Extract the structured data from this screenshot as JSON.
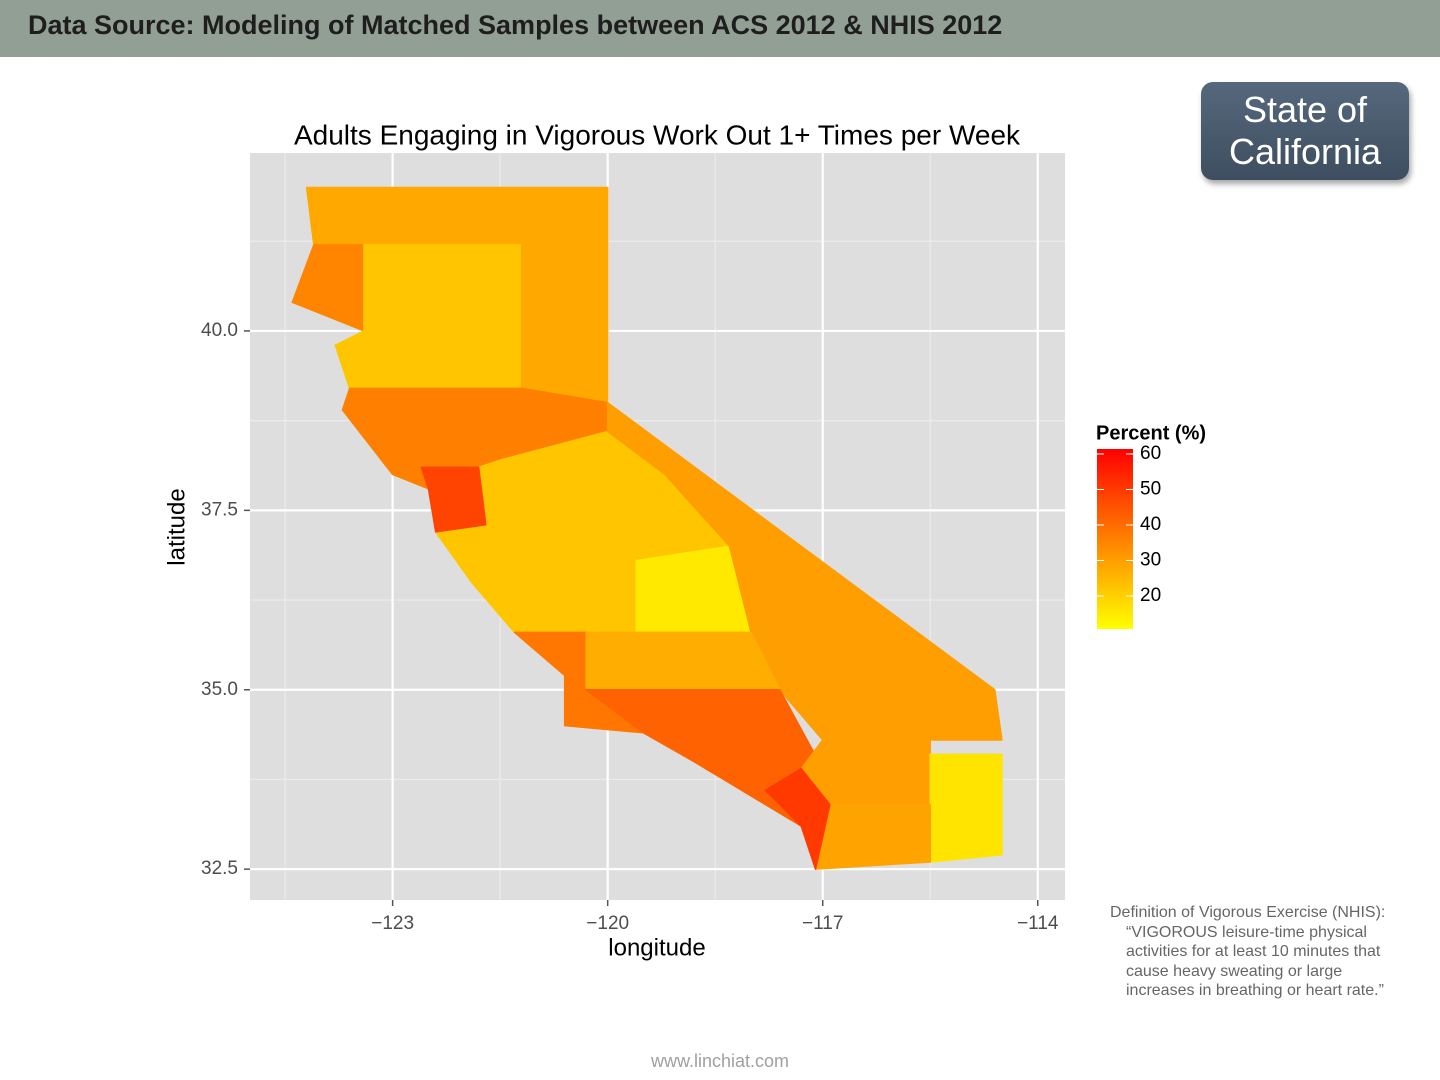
{
  "header": {
    "title": "Data Source: Modeling of Matched Samples between ACS 2012 & NHIS 2012"
  },
  "badge": {
    "label": "State of California"
  },
  "chart_data": {
    "type": "choropleth",
    "title": "Adults Engaging in Vigorous Work Out 1+ Times per Week",
    "x_label": "longitude",
    "y_label": "latitude",
    "xlim": [
      -124.99,
      -113.62
    ],
    "ylim": [
      32.07,
      42.48
    ],
    "xticks": [
      {
        "value": -123,
        "label": "−123"
      },
      {
        "value": -120,
        "label": "−120"
      },
      {
        "value": -117,
        "label": "−117"
      },
      {
        "value": -114,
        "label": "−114"
      }
    ],
    "yticks": [
      {
        "value": 40,
        "label": "40.0"
      },
      37.5,
      {
        "value": 35,
        "label": "35.0"
      },
      32.5
    ],
    "grid": true,
    "legend_title": "Percent (%)",
    "colorlim": [
      10.7,
      61.4
    ],
    "colorticks": [
      20,
      30,
      40,
      50,
      60
    ],
    "color_low": "#ffff00",
    "color_high": "#ff0000",
    "regions": [
      {
        "value": 28,
        "lon": [
          -124.2,
          -120,
          -120,
          -124.1
        ],
        "lat": [
          42,
          42,
          41.2,
          41.2
        ]
      },
      {
        "value": 35,
        "lon": [
          -124.1,
          -123.4,
          -123.4,
          -124.4
        ],
        "lat": [
          41.2,
          41.2,
          40.0,
          40.4
        ]
      },
      {
        "value": 22,
        "lon": [
          -123.4,
          -121.2,
          -121.2,
          -123.6,
          -123.8,
          -123.4
        ],
        "lat": [
          41.2,
          41.2,
          39.2,
          39.2,
          39.8,
          40.0
        ]
      },
      {
        "value": 28,
        "lon": [
          -121.2,
          -120,
          -120,
          -121.2
        ],
        "lat": [
          41.2,
          41.2,
          39,
          39.2
        ]
      },
      {
        "value": 36,
        "lon": [
          -123.7,
          -123.6,
          -121.2,
          -120,
          -120,
          -121.5,
          -122.5,
          -123
        ],
        "lat": [
          38.9,
          39.2,
          39.2,
          39,
          38.6,
          38.2,
          37.8,
          38
        ]
      },
      {
        "value": 22,
        "lon": [
          -121.7,
          -121.8,
          -121.5,
          -120,
          -119.2,
          -118.3,
          -118,
          -119,
          -120.3,
          -121.3,
          -121.9,
          -122.4
        ],
        "lat": [
          37.3,
          38.1,
          38.2,
          38.6,
          38,
          37,
          36,
          35.8,
          35.8,
          35.8,
          36.5,
          37.2
        ]
      },
      {
        "value": 48,
        "lon": [
          -122.6,
          -121.8,
          -121.7,
          -122.4,
          -122.5
        ],
        "lat": [
          38.1,
          38.1,
          37.3,
          37.2,
          37.8
        ]
      },
      {
        "value": 15,
        "lon": [
          -119.6,
          -118.3,
          -118,
          -119.6
        ],
        "lat": [
          36.8,
          37,
          35.8,
          35.8
        ]
      },
      {
        "value": 30,
        "lon": [
          -120,
          -114.6,
          -114.5,
          -117.0,
          -117.6,
          -118,
          -118.3,
          -119.2,
          -120
        ],
        "lat": [
          39,
          35.0,
          34.3,
          34.3,
          35.0,
          35.8,
          37,
          38,
          38.6
        ]
      },
      {
        "value": 38,
        "lon": [
          -121.3,
          -120.3,
          -120.3,
          -119.5,
          -120.6,
          -120.6
        ],
        "lat": [
          35.8,
          35.8,
          35.0,
          34.4,
          34.5,
          35.2
        ]
      },
      {
        "value": 27,
        "lon": [
          -120.3,
          -118,
          -117.6,
          -120.3
        ],
        "lat": [
          35.8,
          35.8,
          35.0,
          35.0
        ]
      },
      {
        "value": 42,
        "lon": [
          -120.3,
          -117.6,
          -117.0,
          -117.3,
          -118.3,
          -118.8,
          -119.5
        ],
        "lat": [
          35.0,
          35.0,
          33.9,
          33.1,
          33.7,
          34.0,
          34.4
        ]
      },
      {
        "value": 30,
        "lon": [
          -117.0,
          -115.5,
          -115.5,
          -116.9,
          -117.3
        ],
        "lat": [
          34.3,
          34.3,
          33.4,
          33.4,
          33.9
        ]
      },
      {
        "value": 16,
        "lon": [
          -115.5,
          -114.5,
          -114.5,
          -115.5
        ],
        "lat": [
          34.1,
          34.1,
          32.7,
          32.6
        ]
      },
      {
        "value": 29,
        "lon": [
          -116.9,
          -115.5,
          -115.5,
          -117.1
        ],
        "lat": [
          33.4,
          33.4,
          32.6,
          32.5
        ]
      },
      {
        "value": 50,
        "lon": [
          -117.3,
          -116.9,
          -117.1,
          -117.3,
          -117.8
        ],
        "lat": [
          33.9,
          33.4,
          32.5,
          33.1,
          33.6
        ]
      }
    ]
  },
  "definition": {
    "heading": "Definition of Vigorous Exercise (NHIS):",
    "text": "“VIGOROUS leisure-time physical activities for at least 10 minutes that cause heavy sweating or large increases in breathing or heart rate.”"
  },
  "footer": {
    "text": "www.linchiat.com"
  }
}
